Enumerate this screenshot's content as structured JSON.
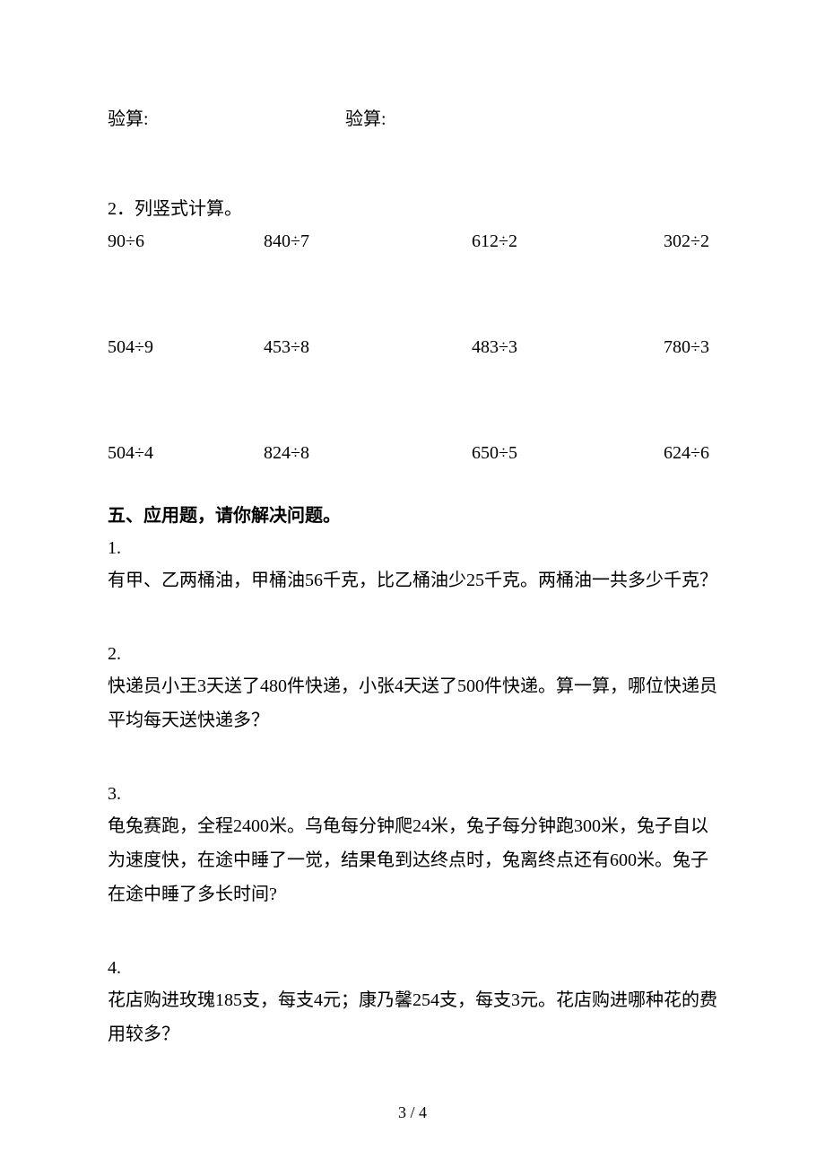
{
  "colors": {
    "text": "#000000",
    "background": "#ffffff"
  },
  "typography": {
    "body_fontsize_pt": 15,
    "body_line_height": 1.5,
    "font_family": "SimSun"
  },
  "check": {
    "left": "验算:",
    "right": "验算:"
  },
  "sec2": {
    "title": "2．列竖式计算。",
    "rows": [
      [
        "90÷6",
        "840÷7",
        "612÷2",
        "302÷2"
      ],
      [
        "504÷9",
        "453÷8",
        "483÷3",
        "780÷3"
      ],
      [
        "504÷4",
        "824÷8",
        "650÷5",
        "624÷6"
      ]
    ]
  },
  "section5": {
    "title": "五、应用题，请你解决问题。",
    "problems": [
      {
        "num": "1.",
        "text": "有甲、乙两桶油，甲桶油56千克，比乙桶油少25千克。两桶油一共多少千克？"
      },
      {
        "num": "2.",
        "text": "快递员小王3天送了480件快递，小张4天送了500件快递。算一算，哪位快递员平均每天送快递多？"
      },
      {
        "num": "3.",
        "text": "龟兔赛跑，全程2400米。乌龟每分钟爬24米，兔子每分钟跑300米，兔子自以为速度快，在途中睡了一觉，结果龟到达终点时，兔离终点还有600米。兔子在途中睡了多长时间?"
      },
      {
        "num": "4.",
        "text": "花店购进玫瑰185支，每支4元；康乃馨254支，每支3元。花店购进哪种花的费用较多？"
      }
    ]
  },
  "page_number": "3 / 4"
}
